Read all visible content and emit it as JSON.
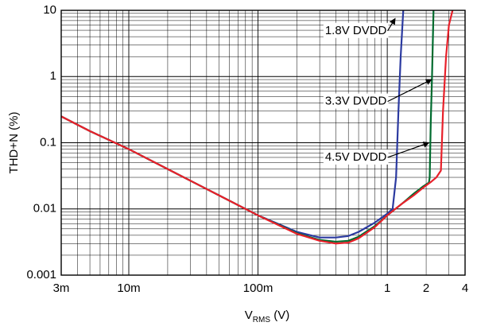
{
  "chart_data": {
    "type": "line",
    "title": "",
    "xlabel": {
      "main": "V",
      "sub": "RMS",
      "unit": " (V)"
    },
    "ylabel": "THD+N (%)",
    "xscale": "log",
    "yscale": "log",
    "xlim": [
      0.003,
      4
    ],
    "ylim": [
      0.001,
      10
    ],
    "grid": true,
    "xticks": [
      {
        "value": 0.003,
        "label": "3m"
      },
      {
        "value": 0.01,
        "label": "10m"
      },
      {
        "value": 0.1,
        "label": "100m"
      },
      {
        "value": 1,
        "label": "1"
      },
      {
        "value": 2,
        "label": "2"
      },
      {
        "value": 4,
        "label": "4"
      }
    ],
    "yticks": [
      {
        "value": 0.001,
        "label": "0.001"
      },
      {
        "value": 0.01,
        "label": "0.01"
      },
      {
        "value": 0.1,
        "label": "0.1"
      },
      {
        "value": 1,
        "label": "1"
      },
      {
        "value": 10,
        "label": "10"
      }
    ],
    "series": [
      {
        "name": "1.8V DVDD",
        "color": "#2b3aa0",
        "x": [
          0.003,
          0.005,
          0.01,
          0.02,
          0.05,
          0.1,
          0.2,
          0.3,
          0.4,
          0.5,
          0.6,
          0.8,
          1.0,
          1.1,
          1.17,
          1.22,
          1.27,
          1.33
        ],
        "y": [
          0.25,
          0.15,
          0.08,
          0.04,
          0.016,
          0.008,
          0.0045,
          0.0037,
          0.0037,
          0.0039,
          0.0045,
          0.0062,
          0.0085,
          0.01,
          0.03,
          0.3,
          2.0,
          10
        ]
      },
      {
        "name": "3.3V DVDD",
        "color": "#006b2e",
        "x": [
          0.003,
          0.005,
          0.01,
          0.02,
          0.05,
          0.1,
          0.2,
          0.3,
          0.4,
          0.5,
          0.6,
          0.8,
          1.0,
          1.3,
          1.6,
          1.9,
          2.1,
          2.13,
          2.17,
          2.22,
          2.28
        ],
        "y": [
          0.25,
          0.15,
          0.08,
          0.04,
          0.016,
          0.008,
          0.0043,
          0.0034,
          0.0032,
          0.0033,
          0.0038,
          0.0055,
          0.008,
          0.012,
          0.017,
          0.022,
          0.025,
          0.03,
          0.2,
          1.0,
          10
        ]
      },
      {
        "name": "4.5V DVDD",
        "color": "#e8202a",
        "x": [
          0.003,
          0.005,
          0.01,
          0.02,
          0.05,
          0.1,
          0.2,
          0.3,
          0.4,
          0.5,
          0.6,
          0.8,
          1.0,
          1.3,
          1.6,
          1.9,
          2.2,
          2.4,
          2.6,
          2.7,
          2.85,
          3.0,
          3.2
        ],
        "y": [
          0.25,
          0.15,
          0.08,
          0.04,
          0.016,
          0.008,
          0.0042,
          0.0033,
          0.003,
          0.0031,
          0.0036,
          0.0053,
          0.008,
          0.012,
          0.016,
          0.021,
          0.026,
          0.03,
          0.038,
          0.3,
          2.0,
          6.0,
          10
        ]
      }
    ],
    "annotations": [
      {
        "text": "1.8V DVDD",
        "series": 0,
        "label_at": [
          0.33,
          4.9
        ],
        "arrow_to": [
          1.15,
          7.5
        ]
      },
      {
        "text": "3.3V DVDD",
        "series": 1,
        "label_at": [
          0.33,
          0.42
        ],
        "arrow_to": [
          2.2,
          0.9
        ]
      },
      {
        "text": "4.5V DVDD",
        "series": 2,
        "label_at": [
          0.33,
          0.06
        ],
        "arrow_to": [
          2.1,
          0.1
        ]
      }
    ]
  }
}
